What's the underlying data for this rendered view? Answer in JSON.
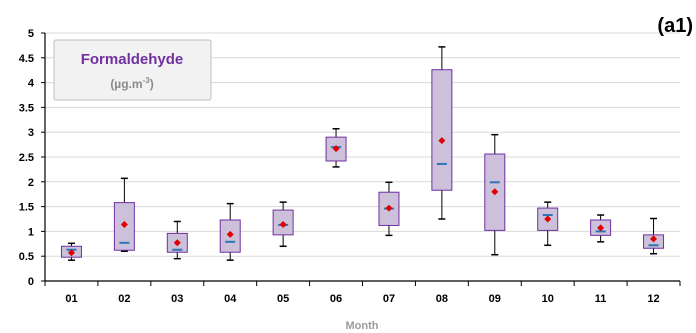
{
  "chart_data": {
    "type": "box",
    "panel_label": "(a1)",
    "legend": {
      "title": "Formaldehyde",
      "unit_prefix": "(µg.m",
      "unit_exp": "-3",
      "unit_suffix": ")"
    },
    "xlabel": "Month",
    "ylabel": "",
    "ylim": [
      0,
      5
    ],
    "yticks": [
      "0",
      "0.5",
      "1",
      "1.5",
      "2",
      "2.5",
      "3",
      "3.5",
      "4",
      "4.5",
      "5"
    ],
    "categories": [
      "01",
      "02",
      "03",
      "04",
      "05",
      "06",
      "07",
      "08",
      "09",
      "10",
      "11",
      "12"
    ],
    "grid": true,
    "colors": {
      "box_fill": "#ccc0da",
      "box_stroke": "#7030a0",
      "whisker": "#000000",
      "mean": "#e00000",
      "median": "#2e75b6",
      "grid": "#d9d9d9",
      "legend_fill": "#f2f2f2"
    },
    "series": [
      {
        "min": 0.42,
        "q1": 0.48,
        "median": 0.63,
        "q3": 0.7,
        "max": 0.76,
        "mean": 0.57
      },
      {
        "min": 0.6,
        "q1": 0.62,
        "median": 0.77,
        "q3": 1.58,
        "max": 2.07,
        "mean": 1.14
      },
      {
        "min": 0.45,
        "q1": 0.58,
        "median": 0.63,
        "q3": 0.96,
        "max": 1.2,
        "mean": 0.77
      },
      {
        "min": 0.42,
        "q1": 0.58,
        "median": 0.79,
        "q3": 1.23,
        "max": 1.56,
        "mean": 0.94
      },
      {
        "min": 0.7,
        "q1": 0.93,
        "median": 1.13,
        "q3": 1.43,
        "max": 1.59,
        "mean": 1.14
      },
      {
        "min": 2.3,
        "q1": 2.42,
        "median": 2.7,
        "q3": 2.9,
        "max": 3.07,
        "mean": 2.67
      },
      {
        "min": 0.92,
        "q1": 1.12,
        "median": 1.46,
        "q3": 1.79,
        "max": 1.99,
        "mean": 1.47
      },
      {
        "min": 1.25,
        "q1": 1.83,
        "median": 2.36,
        "q3": 4.26,
        "max": 4.72,
        "mean": 2.83
      },
      {
        "min": 0.53,
        "q1": 1.02,
        "median": 1.99,
        "q3": 2.56,
        "max": 2.95,
        "mean": 1.8
      },
      {
        "min": 0.72,
        "q1": 1.02,
        "median": 1.33,
        "q3": 1.47,
        "max": 1.59,
        "mean": 1.25
      },
      {
        "min": 0.79,
        "q1": 0.92,
        "median": 1.0,
        "q3": 1.23,
        "max": 1.33,
        "mean": 1.07
      },
      {
        "min": 0.55,
        "q1": 0.66,
        "median": 0.72,
        "q3": 0.93,
        "max": 1.26,
        "mean": 0.85
      }
    ]
  }
}
